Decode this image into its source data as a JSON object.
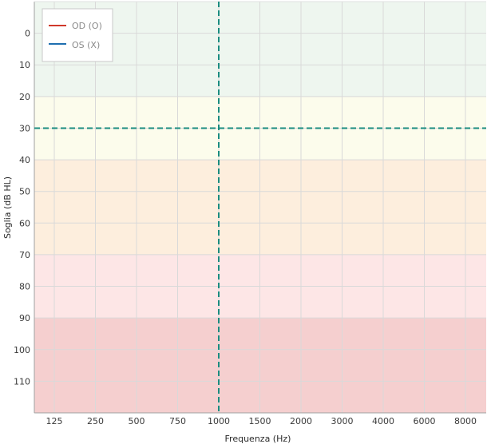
{
  "chart_data": {
    "type": "line",
    "xlabel": "Frequenza (Hz)",
    "ylabel": "Soglia (dB HL)",
    "x_categories": [
      "125",
      "250",
      "500",
      "750",
      "1000",
      "1500",
      "2000",
      "3000",
      "4000",
      "6000",
      "8000"
    ],
    "y_ticks": [
      0,
      10,
      20,
      30,
      40,
      50,
      60,
      70,
      80,
      90,
      100,
      110
    ],
    "ylim": [
      -10,
      120
    ],
    "y_inverted": true,
    "grid": true,
    "legend_position": "top-left",
    "series": [
      {
        "name": "OD (O)",
        "color": "#d0382b",
        "values": []
      },
      {
        "name": "OS (X)",
        "color": "#1f6fb0",
        "values": []
      }
    ],
    "bands": [
      {
        "from": -10,
        "to": 20,
        "color": "#eef6ef"
      },
      {
        "from": 20,
        "to": 40,
        "color": "#fcfcec"
      },
      {
        "from": 40,
        "to": 70,
        "color": "#fdeedd"
      },
      {
        "from": 70,
        "to": 90,
        "color": "#fde6e6"
      },
      {
        "from": 90,
        "to": 120,
        "color": "#f5cfcf"
      }
    ],
    "crosshair": {
      "x_category": "1000",
      "y_value": 30,
      "color": "#1a8c80"
    }
  }
}
